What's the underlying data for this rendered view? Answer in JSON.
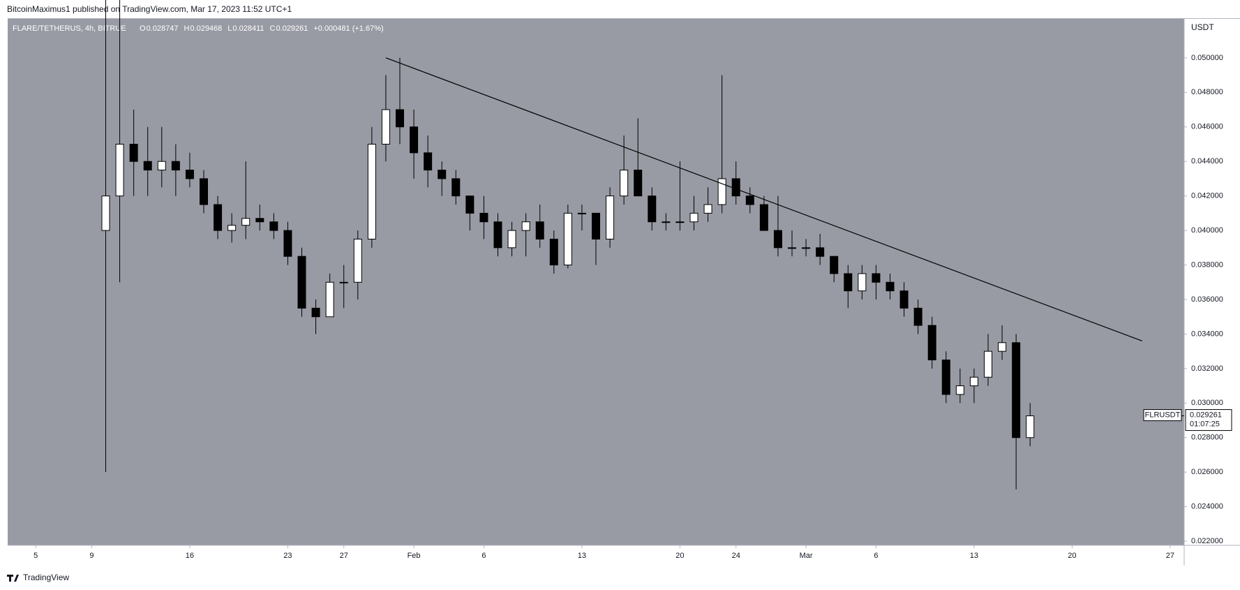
{
  "header": {
    "publisher": "BitcoinMaximus1 published on TradingView.com, Mar 17, 2023 11:52 UTC+1"
  },
  "chart_data": {
    "type": "candlestick",
    "symbol": "FLARE/TETHERUS, 4h, BITRUE",
    "legend": {
      "o_label": "O",
      "o": 0.028747,
      "h_label": "H",
      "h": 0.029468,
      "l_label": "L",
      "l": 0.028411,
      "c_label": "C",
      "c": 0.029261,
      "change": "+0.000481 (+1.67%)"
    },
    "y_unit": "USDT",
    "last_price": {
      "label": "FLRUSDT",
      "value": 0.029261,
      "countdown": "01:07:25"
    },
    "x": [
      "Jan 10",
      "Jan 11",
      "Jan 12",
      "Jan 13",
      "Jan 14",
      "Jan 15",
      "Jan 16",
      "Jan 17",
      "Jan 18",
      "Jan 19",
      "Jan 20",
      "Jan 21",
      "Jan 22",
      "Jan 23",
      "Jan 24",
      "Jan 25",
      "Jan 26",
      "Jan 27",
      "Jan 28",
      "Jan 29",
      "Jan 30",
      "Jan 31",
      "Feb 1",
      "Feb 2",
      "Feb 3",
      "Feb 4",
      "Feb 5",
      "Feb 6",
      "Feb 7",
      "Feb 8",
      "Feb 9",
      "Feb 10",
      "Feb 11",
      "Feb 12",
      "Feb 13",
      "Feb 14",
      "Feb 15",
      "Feb 16",
      "Feb 17",
      "Feb 18",
      "Feb 19",
      "Feb 20",
      "Feb 21",
      "Feb 22",
      "Feb 23",
      "Feb 24",
      "Feb 25",
      "Feb 26",
      "Feb 27",
      "Feb 28",
      "Mar 1",
      "Mar 2",
      "Mar 3",
      "Mar 4",
      "Mar 5",
      "Mar 6",
      "Mar 7",
      "Mar 8",
      "Mar 9",
      "Mar 10",
      "Mar 11",
      "Mar 12",
      "Mar 13",
      "Mar 14",
      "Mar 15",
      "Mar 16",
      "Mar 17"
    ],
    "open": [
      0.04,
      0.042,
      0.045,
      0.044,
      0.0435,
      0.044,
      0.0435,
      0.043,
      0.0415,
      0.04,
      0.0403,
      0.0407,
      0.0405,
      0.04,
      0.0385,
      0.0355,
      0.035,
      0.037,
      0.037,
      0.0395,
      0.045,
      0.047,
      0.046,
      0.0445,
      0.0435,
      0.043,
      0.042,
      0.041,
      0.0405,
      0.039,
      0.04,
      0.0405,
      0.0395,
      0.038,
      0.041,
      0.041,
      0.0395,
      0.042,
      0.0435,
      0.042,
      0.0405,
      0.0405,
      0.0405,
      0.041,
      0.0415,
      0.043,
      0.042,
      0.0415,
      0.04,
      0.039,
      0.039,
      0.039,
      0.0385,
      0.0375,
      0.0365,
      0.0375,
      0.037,
      0.0365,
      0.0355,
      0.0345,
      0.0325,
      0.0305,
      0.031,
      0.0315,
      0.033,
      0.0335,
      0.028
    ],
    "high": [
      0.054,
      0.054,
      0.047,
      0.046,
      0.046,
      0.045,
      0.0445,
      0.0435,
      0.042,
      0.041,
      0.044,
      0.0415,
      0.041,
      0.0405,
      0.039,
      0.036,
      0.0375,
      0.038,
      0.04,
      0.046,
      0.049,
      0.05,
      0.047,
      0.0455,
      0.044,
      0.0435,
      0.042,
      0.042,
      0.041,
      0.0405,
      0.041,
      0.0415,
      0.04,
      0.0415,
      0.0415,
      0.041,
      0.0425,
      0.0455,
      0.0465,
      0.0425,
      0.041,
      0.044,
      0.042,
      0.0425,
      0.049,
      0.044,
      0.0425,
      0.042,
      0.042,
      0.04,
      0.0395,
      0.0398,
      0.0385,
      0.038,
      0.038,
      0.038,
      0.0375,
      0.037,
      0.036,
      0.035,
      0.033,
      0.032,
      0.032,
      0.034,
      0.0345,
      0.034,
      0.03
    ],
    "low": [
      0.026,
      0.037,
      0.042,
      0.042,
      0.0425,
      0.042,
      0.0425,
      0.041,
      0.0395,
      0.0393,
      0.0395,
      0.04,
      0.0395,
      0.038,
      0.035,
      0.034,
      0.035,
      0.0355,
      0.036,
      0.039,
      0.044,
      0.045,
      0.043,
      0.0425,
      0.042,
      0.0415,
      0.04,
      0.0395,
      0.0385,
      0.0385,
      0.0385,
      0.039,
      0.0375,
      0.0378,
      0.04,
      0.038,
      0.039,
      0.0415,
      0.042,
      0.04,
      0.04,
      0.04,
      0.04,
      0.0405,
      0.041,
      0.0415,
      0.041,
      0.04,
      0.0385,
      0.0385,
      0.0385,
      0.038,
      0.037,
      0.0355,
      0.036,
      0.036,
      0.036,
      0.035,
      0.034,
      0.032,
      0.03,
      0.03,
      0.03,
      0.031,
      0.0325,
      0.025,
      0.0275
    ],
    "close": [
      0.042,
      0.045,
      0.044,
      0.0435,
      0.044,
      0.0435,
      0.043,
      0.0415,
      0.04,
      0.0403,
      0.0407,
      0.0405,
      0.04,
      0.0385,
      0.0355,
      0.035,
      0.037,
      0.037,
      0.0395,
      0.045,
      0.047,
      0.046,
      0.0445,
      0.0435,
      0.043,
      0.042,
      0.041,
      0.0405,
      0.039,
      0.04,
      0.0405,
      0.0395,
      0.038,
      0.041,
      0.041,
      0.0395,
      0.042,
      0.0435,
      0.042,
      0.0405,
      0.0405,
      0.0405,
      0.041,
      0.0415,
      0.043,
      0.042,
      0.0415,
      0.04,
      0.039,
      0.039,
      0.039,
      0.0385,
      0.0375,
      0.0365,
      0.0375,
      0.037,
      0.0365,
      0.0355,
      0.0345,
      0.0325,
      0.0305,
      0.031,
      0.0315,
      0.033,
      0.0335,
      0.028,
      0.029261
    ],
    "trendline": {
      "x": [
        "Jan 30",
        "Mar 25"
      ],
      "values": [
        0.05,
        0.0336
      ]
    },
    "xlim": [
      "Jan 3",
      "Mar 28"
    ],
    "xticks": [
      {
        "value": "Jan 5",
        "label": "5"
      },
      {
        "value": "Jan 9",
        "label": "9"
      },
      {
        "value": "Jan 16",
        "label": "16"
      },
      {
        "value": "Jan 23",
        "label": "23"
      },
      {
        "value": "Jan 27",
        "label": "27"
      },
      {
        "value": "Feb 1",
        "label": "Feb"
      },
      {
        "value": "Feb 6",
        "label": "6"
      },
      {
        "value": "Feb 13",
        "label": "13"
      },
      {
        "value": "Feb 20",
        "label": "20"
      },
      {
        "value": "Feb 24",
        "label": "24"
      },
      {
        "value": "Mar 1",
        "label": "Mar"
      },
      {
        "value": "Mar 6",
        "label": "6"
      },
      {
        "value": "Mar 13",
        "label": "13"
      },
      {
        "value": "Mar 20",
        "label": "20"
      },
      {
        "value": "Mar 27",
        "label": "27"
      }
    ],
    "ylim": [
      0.02176,
      0.05226
    ],
    "yticks": [
      {
        "value": 0.022,
        "label": "0.022000"
      },
      {
        "value": 0.024,
        "label": "0.024000"
      },
      {
        "value": 0.026,
        "label": "0.026000"
      },
      {
        "value": 0.028,
        "label": "0.028000"
      },
      {
        "value": 0.03,
        "label": "0.030000"
      },
      {
        "value": 0.032,
        "label": "0.032000"
      },
      {
        "value": 0.034,
        "label": "0.034000"
      },
      {
        "value": 0.036,
        "label": "0.036000"
      },
      {
        "value": 0.038,
        "label": "0.038000"
      },
      {
        "value": 0.04,
        "label": "0.040000"
      },
      {
        "value": 0.042,
        "label": "0.042000"
      },
      {
        "value": 0.044,
        "label": "0.044000"
      },
      {
        "value": 0.046,
        "label": "0.046000"
      },
      {
        "value": 0.048,
        "label": "0.048000"
      },
      {
        "value": 0.05,
        "label": "0.050000"
      }
    ],
    "background": "#989ba4",
    "up_color": "#ffffff",
    "down_color": "#000000"
  },
  "footer": {
    "brand": "TradingView"
  }
}
